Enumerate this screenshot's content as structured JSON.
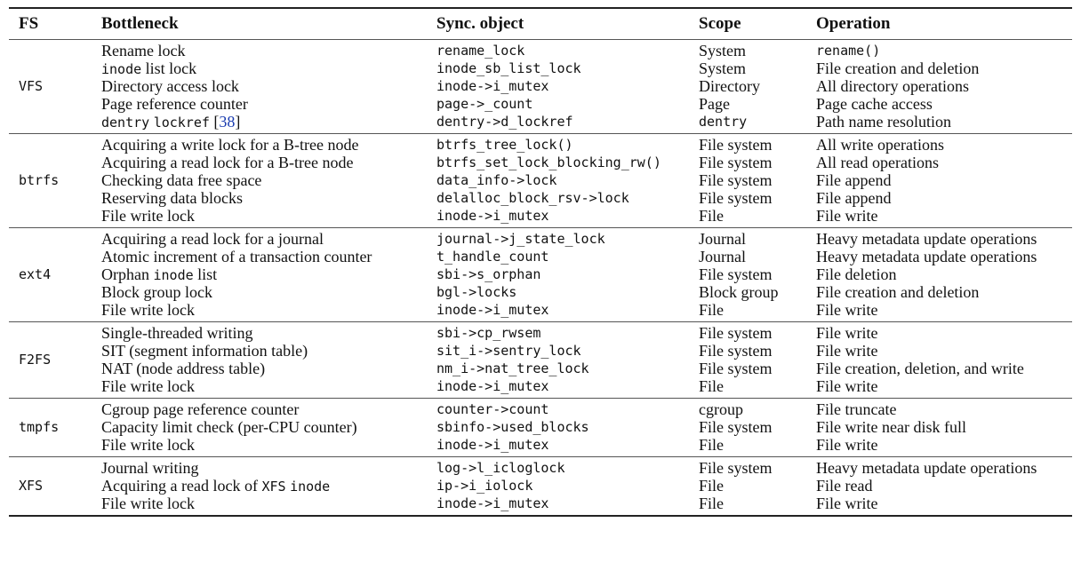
{
  "headers": {
    "fs": "FS",
    "bottleneck": "Bottleneck",
    "sync_object": "Sync. object",
    "scope": "Scope",
    "operation": "Operation"
  },
  "groups": [
    {
      "fs": "VFS",
      "rows": [
        {
          "bottleneck": "Rename lock",
          "sync": "rename_lock",
          "scope": "System",
          "operation": "rename()"
        },
        {
          "bottleneck": "inode list lock",
          "sync": "inode_sb_list_lock",
          "scope": "System",
          "operation": "File creation and deletion"
        },
        {
          "bottleneck": "Directory access lock",
          "sync": "inode->i_mutex",
          "scope": "Directory",
          "operation": "All directory operations"
        },
        {
          "bottleneck": "Page reference counter",
          "sync": "page->_count",
          "scope": "Page",
          "operation": "Page cache access"
        },
        {
          "bottleneck": "dentry lockref [38]",
          "sync": "dentry->d_lockref",
          "scope": "dentry",
          "operation": "Path name resolution"
        }
      ]
    },
    {
      "fs": "btrfs",
      "rows": [
        {
          "bottleneck": "Acquiring a write lock for a B-tree node",
          "sync": "btrfs_tree_lock()",
          "scope": "File system",
          "operation": "All write operations"
        },
        {
          "bottleneck": "Acquiring a read lock for a B-tree node",
          "sync": "btrfs_set_lock_blocking_rw()",
          "scope": "File system",
          "operation": "All read operations"
        },
        {
          "bottleneck": "Checking data free space",
          "sync": "data_info->lock",
          "scope": "File system",
          "operation": "File append"
        },
        {
          "bottleneck": "Reserving data blocks",
          "sync": "delalloc_block_rsv->lock",
          "scope": "File system",
          "operation": "File append"
        },
        {
          "bottleneck": "File write lock",
          "sync": "inode->i_mutex",
          "scope": "File",
          "operation": "File write"
        }
      ]
    },
    {
      "fs": "ext4",
      "rows": [
        {
          "bottleneck": "Acquiring a read lock for a journal",
          "sync": "journal->j_state_lock",
          "scope": "Journal",
          "operation": "Heavy metadata update operations"
        },
        {
          "bottleneck": "Atomic increment of a transaction counter",
          "sync": "t_handle_count",
          "scope": "Journal",
          "operation": "Heavy metadata update operations"
        },
        {
          "bottleneck": "Orphan inode list",
          "sync": "sbi->s_orphan",
          "scope": "File system",
          "operation": "File deletion"
        },
        {
          "bottleneck": "Block group lock",
          "sync": "bgl->locks",
          "scope": "Block group",
          "operation": "File creation and deletion"
        },
        {
          "bottleneck": "File write lock",
          "sync": "inode->i_mutex",
          "scope": "File",
          "operation": "File write"
        }
      ]
    },
    {
      "fs": "F2FS",
      "rows": [
        {
          "bottleneck": "Single-threaded writing",
          "sync": "sbi->cp_rwsem",
          "scope": "File system",
          "operation": "File write"
        },
        {
          "bottleneck": "SIT (segment information table)",
          "sync": "sit_i->sentry_lock",
          "scope": "File system",
          "operation": "File write"
        },
        {
          "bottleneck": "NAT (node address table)",
          "sync": "nm_i->nat_tree_lock",
          "scope": "File system",
          "operation": "File creation, deletion, and write"
        },
        {
          "bottleneck": "File write lock",
          "sync": "inode->i_mutex",
          "scope": "File",
          "operation": "File write"
        }
      ]
    },
    {
      "fs": "tmpfs",
      "rows": [
        {
          "bottleneck": "Cgroup page reference counter",
          "sync": "counter->count",
          "scope": "cgroup",
          "operation": "File truncate"
        },
        {
          "bottleneck": "Capacity limit check (per-CPU counter)",
          "sync": "sbinfo->used_blocks",
          "scope": "File system",
          "operation": "File write near disk full"
        },
        {
          "bottleneck": "File write lock",
          "sync": "inode->i_mutex",
          "scope": "File",
          "operation": "File write"
        }
      ]
    },
    {
      "fs": "XFS",
      "rows": [
        {
          "bottleneck": "Journal writing",
          "sync": "log->l_icloglock",
          "scope": "File system",
          "operation": "Heavy metadata update operations"
        },
        {
          "bottleneck": "Acquiring a read lock of XFS inode",
          "sync": "ip->i_iolock",
          "scope": "File",
          "operation": "File read"
        },
        {
          "bottleneck": "File write lock",
          "sync": "inode->i_mutex",
          "scope": "File",
          "operation": "File write"
        }
      ]
    }
  ]
}
